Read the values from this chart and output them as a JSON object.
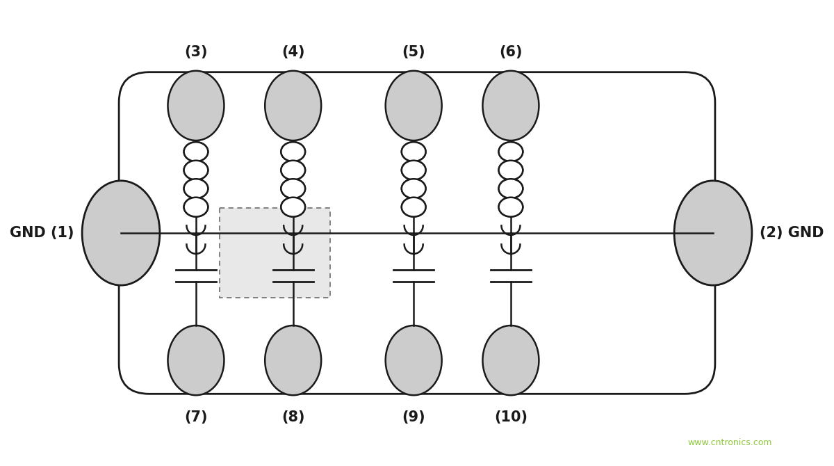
{
  "bg_color": "#ffffff",
  "border_color": "#1a1a1a",
  "pad_color": "#cccccc",
  "wire_color": "#1a1a1a",
  "dotted_box_color": "#777777",
  "font_color": "#1a1a1a",
  "website_color": "#8dc63f",
  "fig_width": 12.0,
  "fig_height": 6.7,
  "labels_top": [
    "(3)",
    "(4)",
    "(5)",
    "(6)"
  ],
  "labels_bottom": [
    "(7)",
    "(8)",
    "(9)",
    "(10)"
  ],
  "label_left": "GND (1)",
  "label_right": "(2) GND",
  "website_text": "www.cntronics.com"
}
